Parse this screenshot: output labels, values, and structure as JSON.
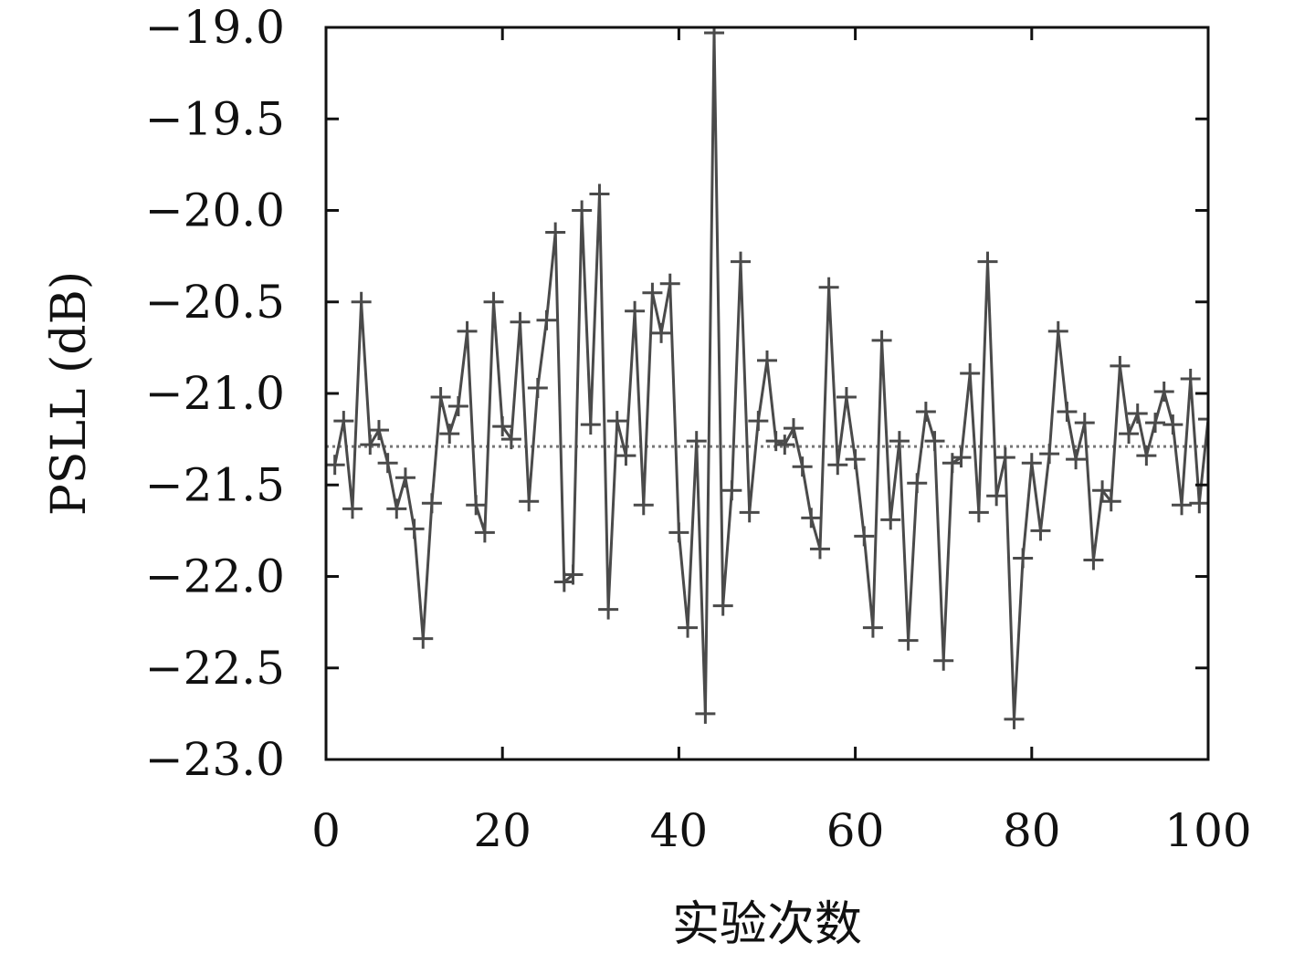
{
  "chart_data": {
    "type": "line",
    "xlabel": "实验次数",
    "ylabel": "PSLL (dB)",
    "xlim": [
      0,
      100
    ],
    "ylim": [
      -23.0,
      -19.0
    ],
    "x_ticks": [
      0,
      20,
      40,
      60,
      80,
      100
    ],
    "x_tick_labels": [
      "0",
      "20",
      "40",
      "60",
      "80",
      "100"
    ],
    "y_ticks": [
      -19.0,
      -19.5,
      -20.0,
      -20.5,
      -21.0,
      -21.5,
      -22.0,
      -22.5,
      -23.0
    ],
    "y_tick_labels": [
      "−19.0",
      "−19.5",
      "−20.0",
      "−20.5",
      "−21.0",
      "−21.5",
      "−22.0",
      "−22.5",
      "−23.0"
    ],
    "grid": false,
    "series": [
      {
        "marker": "plus",
        "color": "#4a4a4a",
        "x": [
          1,
          2,
          3,
          4,
          5,
          6,
          7,
          8,
          9,
          10,
          11,
          12,
          13,
          14,
          15,
          16,
          17,
          18,
          19,
          20,
          21,
          22,
          23,
          24,
          25,
          26,
          27,
          28,
          29,
          30,
          31,
          32,
          33,
          34,
          35,
          36,
          37,
          38,
          39,
          40,
          41,
          42,
          43,
          44,
          45,
          46,
          47,
          48,
          49,
          50,
          51,
          52,
          53,
          54,
          55,
          56,
          57,
          58,
          59,
          60,
          61,
          62,
          63,
          64,
          65,
          66,
          67,
          68,
          69,
          70,
          71,
          72,
          73,
          74,
          75,
          76,
          77,
          78,
          79,
          80,
          81,
          82,
          83,
          84,
          85,
          86,
          87,
          88,
          89,
          90,
          91,
          92,
          93,
          94,
          95,
          96,
          97,
          98,
          99,
          100
        ],
        "y": [
          -21.39,
          -21.15,
          -21.63,
          -20.5,
          -21.28,
          -21.2,
          -21.38,
          -21.63,
          -21.46,
          -21.74,
          -22.34,
          -21.6,
          -21.02,
          -21.22,
          -21.07,
          -20.66,
          -21.61,
          -21.76,
          -20.5,
          -21.18,
          -21.25,
          -20.61,
          -21.59,
          -20.97,
          -20.6,
          -20.12,
          -22.03,
          -21.99,
          -20.0,
          -21.17,
          -19.91,
          -22.18,
          -21.15,
          -21.34,
          -20.55,
          -21.61,
          -20.45,
          -20.67,
          -20.4,
          -21.76,
          -22.28,
          -21.26,
          -22.75,
          -19.03,
          -22.16,
          -21.53,
          -20.28,
          -21.65,
          -21.15,
          -20.82,
          -21.26,
          -21.28,
          -21.19,
          -21.4,
          -21.68,
          -21.85,
          -20.42,
          -21.39,
          -21.02,
          -21.36,
          -21.78,
          -22.28,
          -20.71,
          -21.69,
          -21.26,
          -22.35,
          -21.49,
          -21.1,
          -21.26,
          -22.46,
          -21.38,
          -21.35,
          -20.89,
          -21.65,
          -20.28,
          -21.56,
          -21.35,
          -22.78,
          -21.9,
          -21.38,
          -21.75,
          -21.33,
          -20.66,
          -21.1,
          -21.36,
          -21.16,
          -21.91,
          -21.53,
          -21.59,
          -20.85,
          -21.22,
          -21.11,
          -21.34,
          -21.16,
          -20.99,
          -21.17,
          -21.61,
          -20.92,
          -21.6,
          -21.14
        ]
      },
      {
        "style": "dotted",
        "color": "#777777",
        "x": [
          0,
          100
        ],
        "y": [
          -21.29,
          -21.29
        ]
      }
    ]
  }
}
